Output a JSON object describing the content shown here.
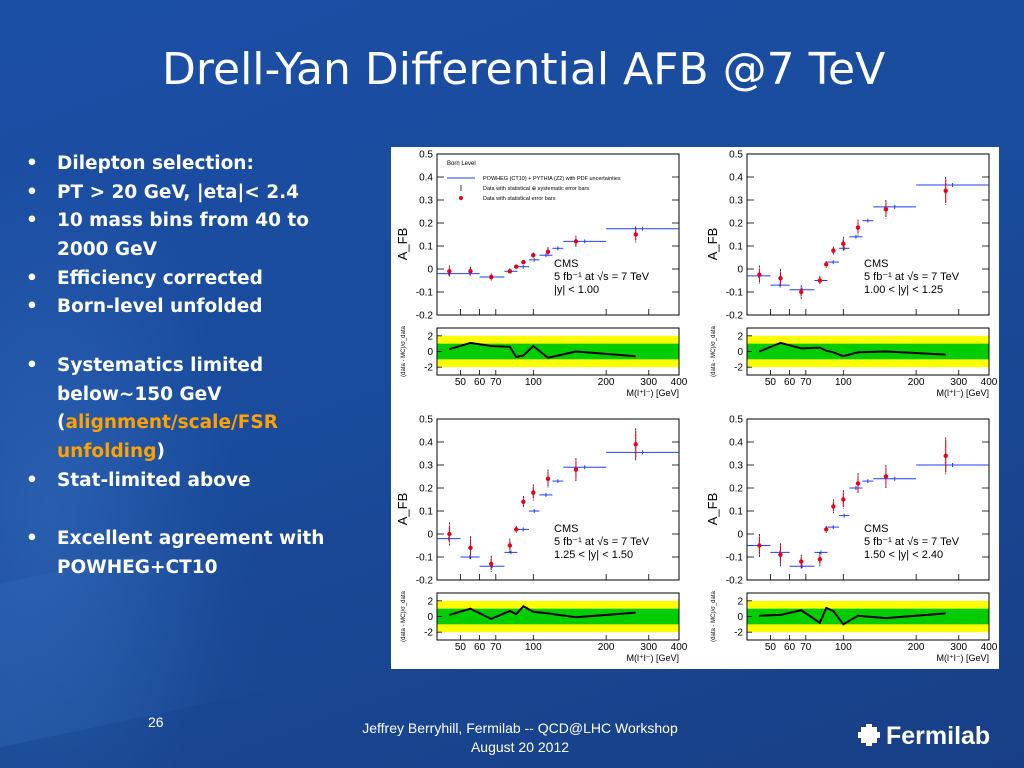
{
  "slide": {
    "title": "Drell-Yan Differential AFB @7 TeV",
    "page_number": "26",
    "footer_line1": "Jeffrey Berryhill, Fermilab -- QCD@LHC Workshop",
    "footer_line2": "August 20 2012",
    "logo_text": "Fermilab"
  },
  "bullets": [
    "Dilepton selection:",
    "PT > 20 GeV, |eta|< 2.4",
    "10 mass bins from 40 to 2000 GeV",
    "Efficiency corrected",
    "Born-level unfolded",
    "Systematics limited below~150 GeV",
    "alignment/scale/FSR unfolding",
    "Stat-limited above",
    "Excellent agreement with POWHEG+CT10"
  ],
  "colors": {
    "background": "#1b4fa6",
    "highlight_text": "#ffa200",
    "mc_line": "#1f3fff",
    "data_points": "#e0001b",
    "band_inner": "#00cc00",
    "band_outer": "#ffff00"
  },
  "chart_data": [
    {
      "type": "scatter",
      "legend": {
        "title": "Born Level",
        "placement": "top-right",
        "entries": [
          "POWHEG (CT10) + PYTHIA (Z2) with PDF uncertainties",
          "Data with statistical ⊕ systematic error bars",
          "Data with statistical error bars"
        ]
      },
      "annotation": [
        "CMS",
        "5 fb⁻¹ at √s = 7 TeV",
        "|y| < 1.00"
      ],
      "ylabel": "A_FB",
      "ratio_ylabel": "(data - MC)/σ_data",
      "xlabel": "M(l⁺l⁻) [GeV]",
      "x_scale": "log",
      "xlim": [
        40,
        400
      ],
      "ylim": [
        -0.2,
        0.5
      ],
      "ratio_ylim": [
        -3,
        3
      ],
      "x_ticks": [
        50,
        60,
        70,
        100,
        200,
        300,
        400
      ],
      "y_ticks": [
        -0.2,
        -0.1,
        0,
        0.1,
        0.2,
        0.3,
        0.4,
        0.5
      ],
      "ratio_y_ticks": [
        -2,
        0,
        2
      ],
      "x": [
        45,
        55,
        67,
        80,
        85,
        91,
        100,
        115,
        150,
        265
      ],
      "mc_bins": [
        [
          40,
          50,
          -0.02
        ],
        [
          50,
          60,
          -0.02
        ],
        [
          60,
          76,
          -0.035
        ],
        [
          76,
          86,
          -0.01
        ],
        [
          86,
          96,
          0.01
        ],
        [
          96,
          106,
          0.04
        ],
        [
          106,
          120,
          0.06
        ],
        [
          120,
          133,
          0.09
        ],
        [
          133,
          200,
          0.12
        ],
        [
          200,
          400,
          0.175
        ]
      ],
      "data": [
        -0.01,
        -0.01,
        -0.035,
        -0.01,
        0.01,
        0.03,
        0.06,
        0.075,
        0.12,
        0.15
      ],
      "stat_err": [
        0.015,
        0.015,
        0.01,
        0.008,
        0.005,
        0.005,
        0.008,
        0.012,
        0.015,
        0.025
      ],
      "tot_err": [
        0.025,
        0.02,
        0.015,
        0.012,
        0.008,
        0.008,
        0.012,
        0.02,
        0.025,
        0.035
      ],
      "ratio": [
        0.3,
        1.1,
        0.7,
        0.6,
        -0.7,
        -0.5,
        0.7,
        -0.8,
        0.0,
        -0.6
      ]
    },
    {
      "type": "scatter",
      "annotation": [
        "CMS",
        "5 fb⁻¹ at √s = 7 TeV",
        "1.00 < |y| < 1.25"
      ],
      "ylabel": "A_FB",
      "ratio_ylabel": "(data - MC)/σ_data",
      "xlabel": "M(l⁺l⁻) [GeV]",
      "x_scale": "log",
      "xlim": [
        40,
        400
      ],
      "ylim": [
        -0.2,
        0.5
      ],
      "ratio_ylim": [
        -3,
        3
      ],
      "x_ticks": [
        50,
        60,
        70,
        100,
        200,
        300,
        400
      ],
      "y_ticks": [
        -0.2,
        -0.1,
        0,
        0.1,
        0.2,
        0.3,
        0.4,
        0.5
      ],
      "ratio_y_ticks": [
        -2,
        0,
        2
      ],
      "x": [
        45,
        55,
        67,
        80,
        85,
        91,
        100,
        115,
        150,
        265
      ],
      "mc_bins": [
        [
          40,
          50,
          -0.03
        ],
        [
          50,
          60,
          -0.07
        ],
        [
          60,
          76,
          -0.09
        ],
        [
          76,
          86,
          -0.05
        ],
        [
          86,
          96,
          0.03
        ],
        [
          96,
          106,
          0.09
        ],
        [
          106,
          120,
          0.14
        ],
        [
          120,
          133,
          0.21
        ],
        [
          133,
          200,
          0.27
        ],
        [
          200,
          400,
          0.365
        ]
      ],
      "data": [
        -0.025,
        -0.04,
        -0.1,
        -0.05,
        0.02,
        0.08,
        0.11,
        0.18,
        0.26,
        0.34
      ],
      "stat_err": [
        0.025,
        0.03,
        0.02,
        0.015,
        0.01,
        0.012,
        0.02,
        0.025,
        0.03,
        0.05
      ],
      "tot_err": [
        0.04,
        0.04,
        0.03,
        0.02,
        0.015,
        0.018,
        0.03,
        0.035,
        0.04,
        0.06
      ],
      "ratio": [
        0.0,
        1.1,
        0.4,
        0.5,
        0.1,
        -0.1,
        -0.6,
        -0.1,
        0.0,
        -0.4
      ]
    },
    {
      "type": "scatter",
      "annotation": [
        "CMS",
        "5 fb⁻¹ at √s = 7 TeV",
        "1.25 < |y| < 1.50"
      ],
      "ylabel": "A_FB",
      "ratio_ylabel": "(data - MC)/σ_data",
      "xlabel": "M(l⁺l⁻) [GeV]",
      "x_scale": "log",
      "xlim": [
        40,
        400
      ],
      "ylim": [
        -0.2,
        0.5
      ],
      "ratio_ylim": [
        -3,
        3
      ],
      "x_ticks": [
        50,
        60,
        70,
        100,
        200,
        300,
        400
      ],
      "y_ticks": [
        -0.2,
        -0.1,
        0,
        0.1,
        0.2,
        0.3,
        0.4,
        0.5
      ],
      "ratio_y_ticks": [
        -2,
        0,
        2
      ],
      "x": [
        45,
        55,
        67,
        80,
        85,
        91,
        100,
        115,
        150,
        265
      ],
      "mc_bins": [
        [
          40,
          50,
          -0.02
        ],
        [
          50,
          60,
          -0.1
        ],
        [
          60,
          76,
          -0.14
        ],
        [
          76,
          86,
          -0.08
        ],
        [
          86,
          96,
          0.02
        ],
        [
          96,
          106,
          0.1
        ],
        [
          106,
          120,
          0.17
        ],
        [
          120,
          133,
          0.23
        ],
        [
          133,
          200,
          0.29
        ],
        [
          200,
          400,
          0.355
        ]
      ],
      "data": [
        0.0,
        -0.06,
        -0.13,
        -0.05,
        0.02,
        0.14,
        0.18,
        0.24,
        0.28,
        0.39
      ],
      "stat_err": [
        0.035,
        0.04,
        0.025,
        0.02,
        0.01,
        0.015,
        0.025,
        0.03,
        0.04,
        0.06
      ],
      "tot_err": [
        0.05,
        0.05,
        0.035,
        0.03,
        0.015,
        0.025,
        0.035,
        0.04,
        0.05,
        0.07
      ],
      "ratio": [
        0.2,
        1.0,
        -0.3,
        0.7,
        0.3,
        1.3,
        0.6,
        0.4,
        -0.1,
        0.5
      ]
    },
    {
      "type": "scatter",
      "annotation": [
        "CMS",
        "5 fb⁻¹ at √s = 7 TeV",
        "1.50 < |y| < 2.40"
      ],
      "ylabel": "A_FB",
      "ratio_ylabel": "(data - MC)/σ_data",
      "xlabel": "M(l⁺l⁻) [GeV]",
      "x_scale": "log",
      "xlim": [
        40,
        400
      ],
      "ylim": [
        -0.2,
        0.5
      ],
      "ratio_ylim": [
        -3,
        3
      ],
      "x_ticks": [
        50,
        60,
        70,
        100,
        200,
        300,
        400
      ],
      "y_ticks": [
        -0.2,
        -0.1,
        0,
        0.1,
        0.2,
        0.3,
        0.4,
        0.5
      ],
      "ratio_y_ticks": [
        -2,
        0,
        2
      ],
      "x": [
        45,
        55,
        67,
        80,
        85,
        91,
        100,
        115,
        150,
        265
      ],
      "mc_bins": [
        [
          40,
          50,
          -0.05
        ],
        [
          50,
          60,
          -0.08
        ],
        [
          60,
          76,
          -0.14
        ],
        [
          76,
          86,
          -0.08
        ],
        [
          86,
          96,
          0.03
        ],
        [
          96,
          106,
          0.08
        ],
        [
          106,
          120,
          0.2
        ],
        [
          120,
          133,
          0.23
        ],
        [
          133,
          200,
          0.24
        ],
        [
          200,
          400,
          0.3
        ]
      ],
      "data": [
        -0.05,
        -0.09,
        -0.12,
        -0.11,
        0.02,
        0.12,
        0.15,
        0.22,
        0.25,
        0.34
      ],
      "stat_err": [
        0.04,
        0.04,
        0.02,
        0.02,
        0.01,
        0.02,
        0.03,
        0.035,
        0.04,
        0.07
      ],
      "tot_err": [
        0.05,
        0.05,
        0.03,
        0.03,
        0.015,
        0.03,
        0.04,
        0.045,
        0.05,
        0.08
      ],
      "ratio": [
        0.1,
        0.2,
        0.8,
        -0.8,
        1.1,
        0.7,
        -1.0,
        0.1,
        -0.2,
        0.4
      ]
    }
  ]
}
